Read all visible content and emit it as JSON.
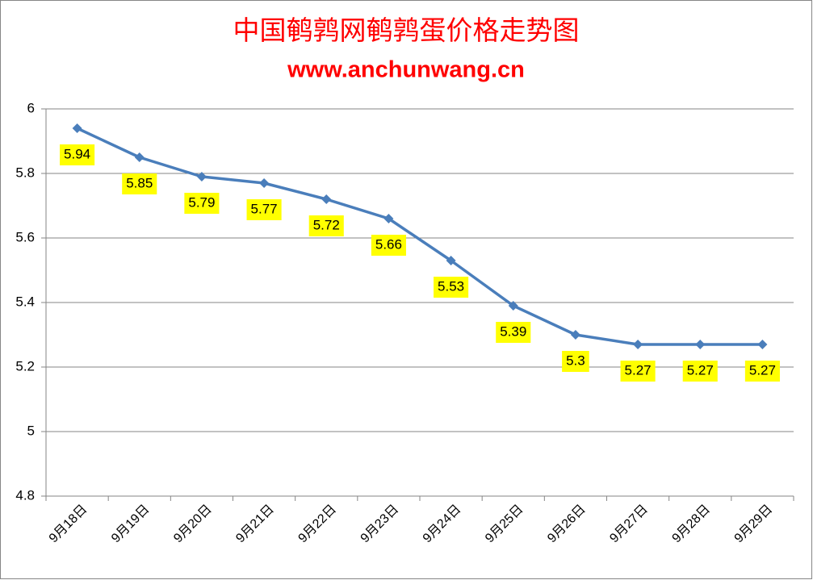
{
  "chart_data": {
    "type": "line",
    "title": "中国鹌鹑网鹌鹑蛋价格走势图",
    "subtitle": "www.anchunwang.cn",
    "categories": [
      "9月18日",
      "9月19日",
      "9月20日",
      "9月21日",
      "9月22日",
      "9月23日",
      "9月24日",
      "9月25日",
      "9月26日",
      "9月27日",
      "9月28日",
      "9月29日"
    ],
    "values": [
      5.94,
      5.85,
      5.79,
      5.77,
      5.72,
      5.66,
      5.53,
      5.39,
      5.3,
      5.27,
      5.27,
      5.27
    ],
    "color": "#4a7ebb",
    "label_color": "#ffff00",
    "ylim": [
      4.8,
      6
    ],
    "yticks": [
      4.8,
      5,
      5.2,
      5.4,
      5.6,
      5.8,
      6
    ],
    "grid": true
  }
}
